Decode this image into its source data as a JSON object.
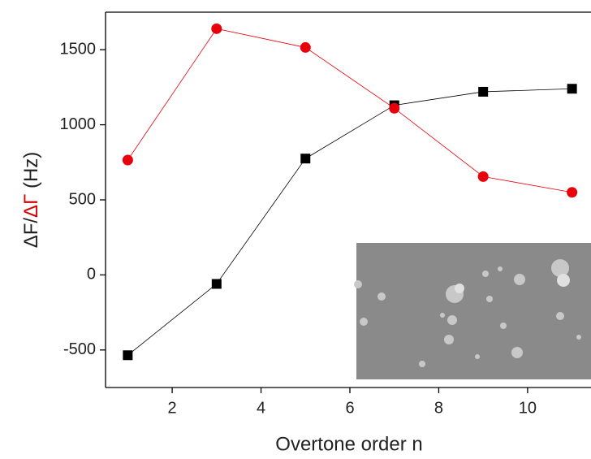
{
  "chart_data": {
    "type": "line",
    "x_label": "Overtone order n",
    "y_label_parts": [
      "ΔF/",
      "ΔΓ",
      " (Hz)"
    ],
    "y_label_colors": [
      "#222222",
      "#d40000",
      "#222222"
    ],
    "x": [
      1,
      3,
      5,
      7,
      9,
      11
    ],
    "series": [
      {
        "color": "#000000",
        "marker": "square",
        "values": [
          -535,
          -60,
          775,
          1130,
          1220,
          1240
        ]
      },
      {
        "color": "#e8000b",
        "marker": "circle",
        "values": [
          765,
          1640,
          1515,
          1110,
          655,
          550
        ]
      }
    ],
    "xlim": [
      0.5,
      11.5
    ],
    "xticks": [
      2,
      4,
      6,
      8,
      10
    ],
    "ylim": [
      -750,
      1750
    ],
    "yticks": [
      -500,
      0,
      500,
      1000,
      1500
    ]
  }
}
